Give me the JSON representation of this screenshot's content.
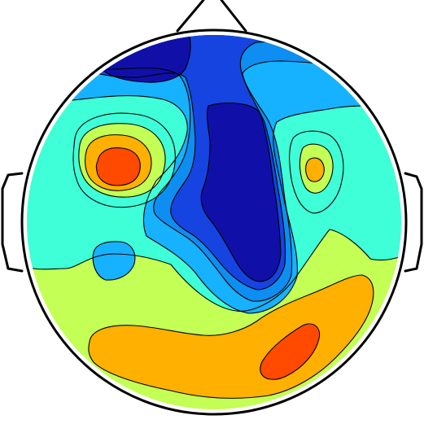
{
  "chart_data": {
    "type": "heatmap",
    "colormap": "jet",
    "levels": [
      {
        "level": 1,
        "color": "#1010a8"
      },
      {
        "level": 2,
        "color": "#1544e0"
      },
      {
        "level": 3,
        "color": "#0d8ef0"
      },
      {
        "level": 4,
        "color": "#16b2ff"
      },
      {
        "level": 5,
        "color": "#3fffd8"
      },
      {
        "level": 6,
        "color": "#c3ff54"
      },
      {
        "level": 7,
        "color": "#ffb000"
      },
      {
        "level": 8,
        "color": "#ff4a00"
      }
    ],
    "regions": [
      {
        "name": "frontal-central-minimum",
        "level": 1
      },
      {
        "name": "left-frontal-maximum",
        "level": 8
      },
      {
        "name": "right-posterior-maximum",
        "level": 8
      },
      {
        "name": "right-frontal-local-maximum",
        "level": 7
      },
      {
        "name": "left-temporal-local-minimum",
        "level": 4
      }
    ],
    "head": {
      "nose": "top",
      "ears": "left-right"
    }
  }
}
